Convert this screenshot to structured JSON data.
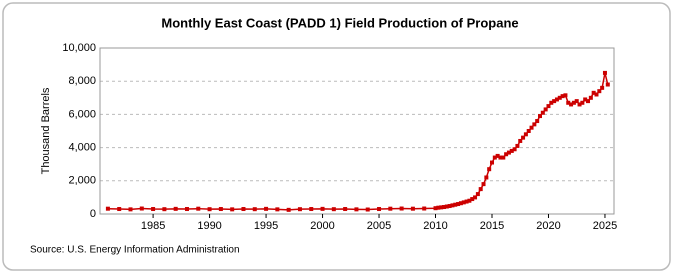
{
  "chart_data": {
    "type": "line",
    "title": "Monthly East Coast (PADD 1) Field Production of Propane",
    "y_label": "Thousand Barrels",
    "source": "Source: U.S. Energy Information Administration",
    "color": "#cc0000",
    "grid": true,
    "x": [
      1981,
      1982,
      1983,
      1984,
      1985,
      1986,
      1987,
      1988,
      1989,
      1990,
      1991,
      1992,
      1993,
      1994,
      1995,
      1996,
      1997,
      1998,
      1999,
      2000,
      2001,
      2002,
      2003,
      2004,
      2005,
      2006,
      2007,
      2008,
      2009,
      2010,
      2010.25,
      2010.5,
      2010.75,
      2011,
      2011.25,
      2011.5,
      2011.75,
      2012,
      2012.25,
      2012.5,
      2012.75,
      2013,
      2013.25,
      2013.5,
      2013.75,
      2014,
      2014.25,
      2014.5,
      2014.75,
      2015,
      2015.25,
      2015.5,
      2015.75,
      2016,
      2016.25,
      2016.5,
      2016.75,
      2017,
      2017.25,
      2017.5,
      2017.75,
      2018,
      2018.25,
      2018.5,
      2018.75,
      2019,
      2019.25,
      2019.5,
      2019.75,
      2020,
      2020.25,
      2020.5,
      2020.75,
      2021,
      2021.25,
      2021.5,
      2021.75,
      2022,
      2022.25,
      2022.5,
      2022.75,
      2023,
      2023.25,
      2023.5,
      2023.75,
      2024,
      2024.25,
      2024.5,
      2024.75,
      2025,
      2025.25
    ],
    "values": [
      320,
      300,
      280,
      330,
      300,
      290,
      310,
      300,
      320,
      290,
      300,
      280,
      300,
      290,
      310,
      280,
      250,
      290,
      300,
      310,
      290,
      300,
      280,
      270,
      300,
      320,
      330,
      320,
      330,
      350,
      380,
      400,
      420,
      450,
      480,
      520,
      560,
      600,
      650,
      700,
      750,
      800,
      900,
      1000,
      1200,
      1500,
      1800,
      2200,
      2700,
      3100,
      3400,
      3500,
      3400,
      3400,
      3600,
      3700,
      3800,
      3900,
      4100,
      4400,
      4600,
      4800,
      5000,
      5200,
      5400,
      5600,
      5900,
      6100,
      6300,
      6500,
      6700,
      6800,
      6900,
      7000,
      7100,
      7150,
      6700,
      6600,
      6700,
      6800,
      6600,
      6700,
      6900,
      6800,
      7000,
      7300,
      7200,
      7400,
      7600,
      8500,
      7800
    ],
    "xlim": [
      1980.3,
      2025.8
    ],
    "xticks": [
      1985,
      1990,
      1995,
      2000,
      2005,
      2010,
      2015,
      2020,
      2025
    ],
    "ylim": [
      0,
      10000
    ],
    "yticks": [
      0,
      {
        "value": 2000,
        "label": "2,000"
      },
      {
        "value": 4000,
        "label": "4,000"
      },
      {
        "value": 6000,
        "label": "6,000"
      },
      {
        "value": 8000,
        "label": "8,000"
      },
      {
        "value": 10000,
        "label": "10,000"
      }
    ]
  }
}
